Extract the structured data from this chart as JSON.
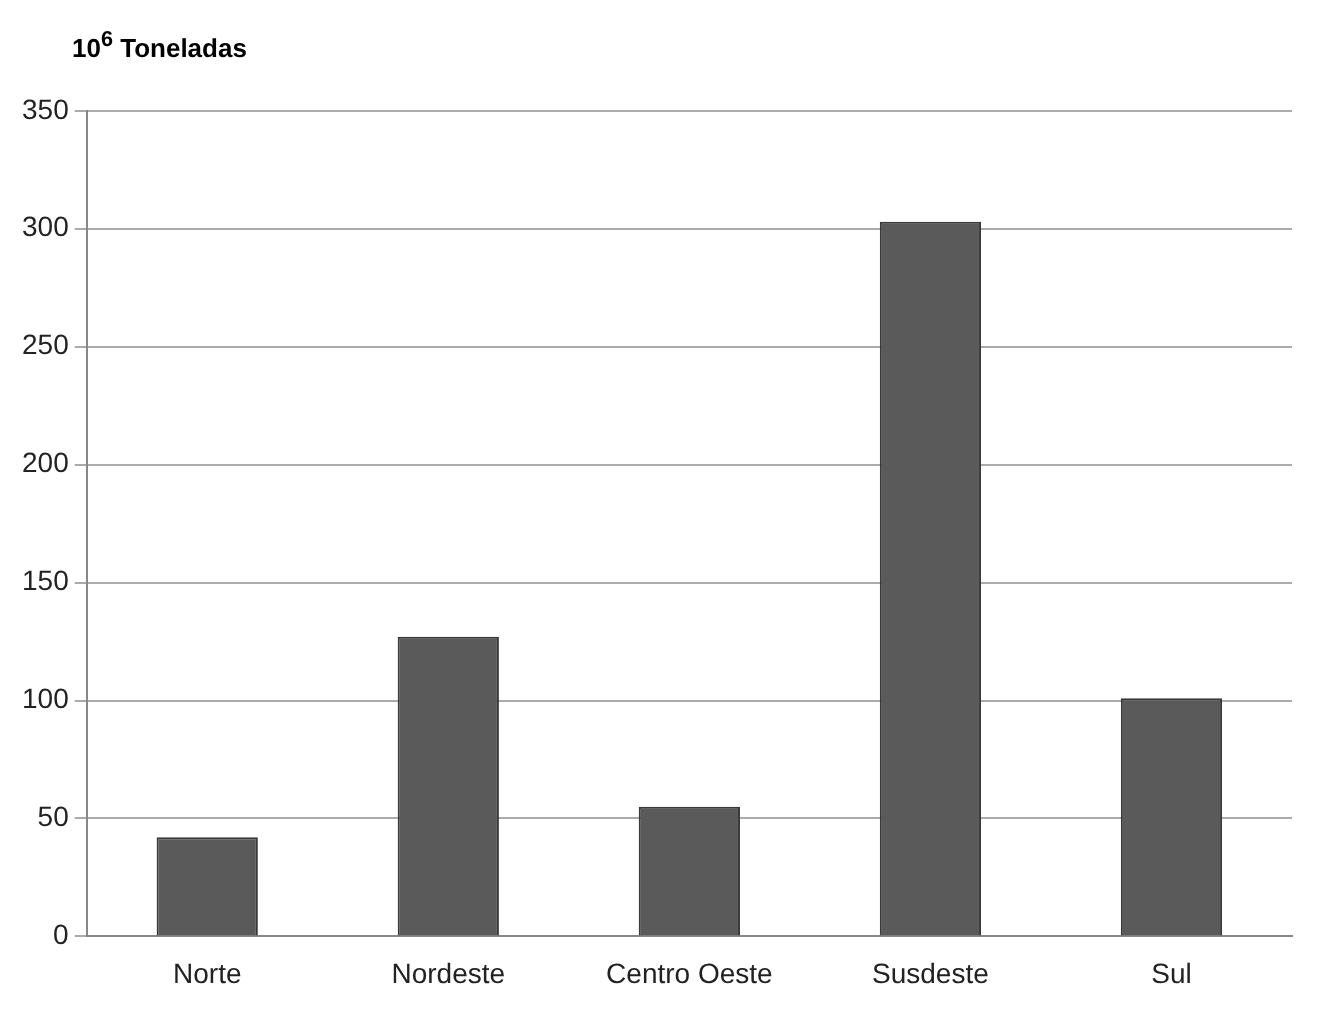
{
  "chart_data": {
    "type": "bar",
    "ylabel": "10$^{6}$ Toneladas",
    "categories": [
      "Norte",
      "Nordeste",
      "Centro Oeste",
      "Susdeste",
      "Sul"
    ],
    "values": [
      42,
      127,
      55,
      303,
      101
    ],
    "color": "#5a5a5a",
    "ylim": [
      0,
      350
    ],
    "yticks": [
      0,
      50,
      100,
      150,
      200,
      250,
      300,
      350
    ],
    "grid": "y",
    "legend": false
  }
}
